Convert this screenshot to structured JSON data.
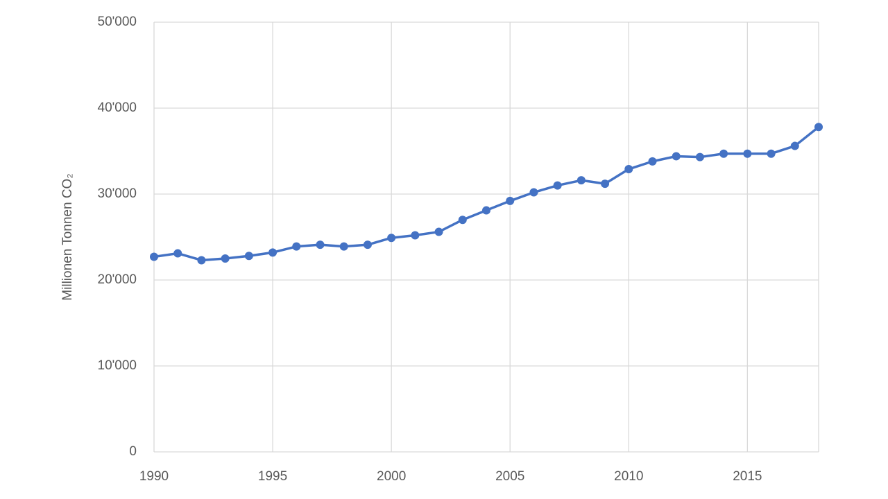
{
  "chart_data": {
    "type": "line",
    "y_label": "Millionen Tonnen CO₂",
    "x": [
      1990,
      1991,
      1992,
      1993,
      1994,
      1995,
      1996,
      1997,
      1998,
      1999,
      2000,
      2001,
      2002,
      2003,
      2004,
      2005,
      2006,
      2007,
      2008,
      2009,
      2010,
      2011,
      2012,
      2013,
      2014,
      2015,
      2016,
      2017,
      2018
    ],
    "series": [
      {
        "color": "#4472c4",
        "values": [
          22700,
          23100,
          22300,
          22500,
          22800,
          23200,
          23900,
          24100,
          23900,
          24100,
          24900,
          25200,
          25600,
          27000,
          28100,
          29200,
          30200,
          31000,
          31600,
          31200,
          32900,
          33800,
          34400,
          34300,
          34700,
          34700,
          34700,
          35600,
          37800
        ]
      }
    ],
    "xlim": [
      1990,
      2018
    ],
    "xticks": [
      1990,
      1995,
      2000,
      2005,
      2010,
      2015
    ],
    "ylim": [
      0,
      50000
    ],
    "yticks": [
      0,
      {
        "value": 10000,
        "label": "10'000"
      },
      {
        "value": 20000,
        "label": "20'000"
      },
      {
        "value": 30000,
        "label": "30'000"
      },
      {
        "value": 40000,
        "label": "40'000"
      },
      {
        "value": 50000,
        "label": "50'000"
      }
    ],
    "grid": true
  }
}
